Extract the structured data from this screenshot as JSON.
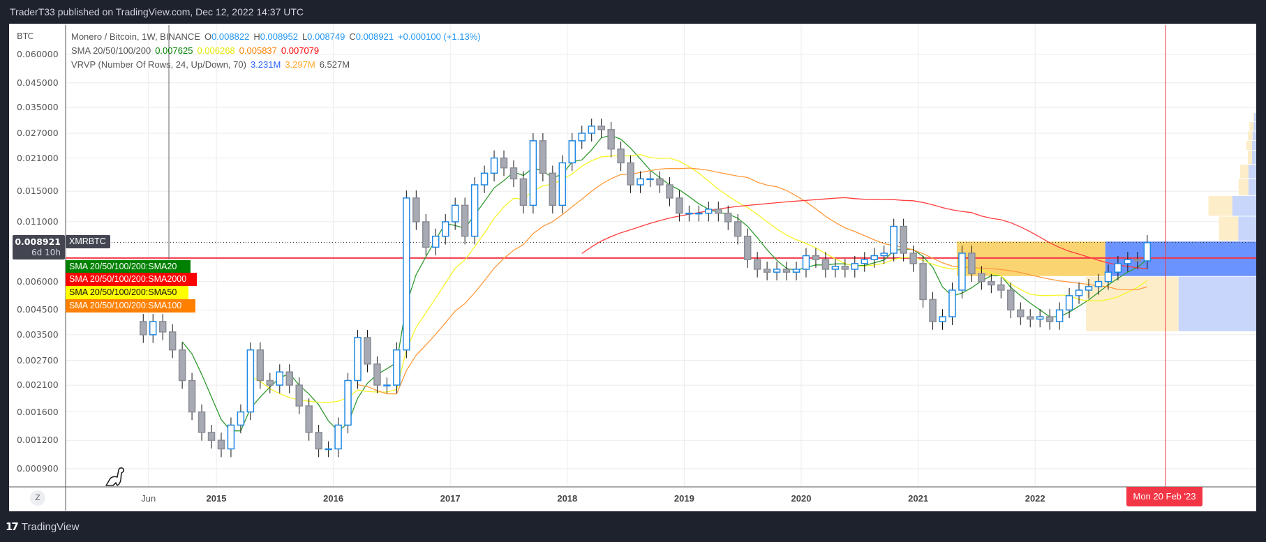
{
  "header": {
    "published": "TraderT33 published on TradingView.com, Dec 12, 2022 14:37 UTC"
  },
  "footer": {
    "brand": "TradingView",
    "brand_mark": "17"
  },
  "legend": {
    "symbol": "Monero / Bitcoin, 1W, BINANCE",
    "o_label": "O",
    "o": "0.008822",
    "h_label": "H",
    "h": "0.008952",
    "l_label": "L",
    "l": "0.008749",
    "c_label": "C",
    "c": "0.008921",
    "change": "+0.000100 (+1.13%)",
    "sma_title": "SMA 20/50/100/200",
    "sma_values": [
      "0.007625",
      "0.006268",
      "0.005837",
      "0.007079"
    ],
    "vrvp_title": "VRVP (Number Of Rows, 24, Up/Down, 70)",
    "vrvp_values": [
      "3.231M",
      "3.297M",
      "6.527M"
    ]
  },
  "price_axis": {
    "currency": "BTC",
    "ticks": [
      "0.060000",
      "0.045000",
      "0.035000",
      "0.027000",
      "0.021000",
      "0.015000",
      "0.011000",
      "0.006000",
      "0.004500",
      "0.003500",
      "0.002700",
      "0.002100",
      "0.001600",
      "0.001200",
      "0.000900"
    ],
    "last_price": "0.008921",
    "countdown": "6d 10h"
  },
  "time_axis": {
    "ticks": [
      "Jun",
      "2015",
      "2016",
      "2017",
      "2018",
      "2019",
      "2020",
      "2021",
      "2022"
    ],
    "cursor_label": "Mon 20 Feb '23",
    "z_button": "Z"
  },
  "labels": {
    "symbol_tag": "XMRBTC",
    "sma_tags": [
      "SMA 20/50/100/200:SMA20",
      "SMA 20/50/100/200:SMA2000",
      "SMA 20/50/100/200:SMA50",
      "SMA 20/50/100/200:SMA100"
    ]
  },
  "colors": {
    "up": "#1e88e5",
    "down": "#8a8d96",
    "sma20": "#2e9a2e",
    "sma50": "#f5f528",
    "sma100": "#ff9a3c",
    "sma200": "#ff3b3b",
    "vrvp_up": "#c8d6fb",
    "vrvp_down": "#fdeec9",
    "vrvp_up_va": "#6b93ff",
    "vrvp_down_va": "#fbd26a",
    "hline": "#f23645",
    "cursor": "#f23645",
    "tag_green": "#008000",
    "tag_red": "#ff0000",
    "tag_yellow": "#ffff00",
    "tag_orange": "#ff8000"
  },
  "chart_data": {
    "type": "candlestick",
    "scale": "log",
    "interval": "1W (approximated monthly)",
    "start": "2014-05",
    "first_open": 0.004,
    "closes": [
      0.0035,
      0.004,
      0.0036,
      0.003,
      0.0022,
      0.0016,
      0.0013,
      0.0012,
      0.0011,
      0.0014,
      0.0016,
      0.003,
      0.0022,
      0.0021,
      0.0024,
      0.0021,
      0.0017,
      0.0013,
      0.0011,
      0.0011,
      0.0014,
      0.0022,
      0.0034,
      0.0026,
      0.0021,
      0.0021,
      0.003,
      0.014,
      0.011,
      0.0085,
      0.0095,
      0.011,
      0.013,
      0.0095,
      0.016,
      0.018,
      0.021,
      0.019,
      0.017,
      0.013,
      0.025,
      0.018,
      0.013,
      0.02,
      0.025,
      0.027,
      0.029,
      0.028,
      0.023,
      0.02,
      0.016,
      0.017,
      0.017,
      0.016,
      0.014,
      0.012,
      0.012,
      0.012,
      0.0125,
      0.012,
      0.011,
      0.0095,
      0.0075,
      0.0068,
      0.0066,
      0.0068,
      0.0066,
      0.0068,
      0.0078,
      0.0075,
      0.0068,
      0.007,
      0.0068,
      0.0072,
      0.0075,
      0.0078,
      0.008,
      0.0105,
      0.008,
      0.0072,
      0.005,
      0.004,
      0.0042,
      0.0055,
      0.008,
      0.0065,
      0.006,
      0.0058,
      0.0055,
      0.0045,
      0.0042,
      0.0041,
      0.0042,
      0.004,
      0.0045,
      0.0052,
      0.0055,
      0.0057,
      0.006,
      0.0066,
      0.0072,
      0.0075,
      0.0074,
      0.0089
    ],
    "sma_periods_weeks": [
      20,
      50,
      100,
      200
    ],
    "horizontal_line": 0.00762,
    "last_price": 0.008921,
    "cursor_date": "2023-02-20",
    "vrvp_rows": [
      {
        "low": 0.0036,
        "high": 0.0063,
        "up": 26,
        "down": 31,
        "value_area": false
      },
      {
        "low": 0.0063,
        "high": 0.009,
        "up": 49,
        "down": 51,
        "value_area": true
      },
      {
        "low": 0.009,
        "high": 0.0116,
        "up": 6,
        "down": 6.5,
        "value_area": false
      },
      {
        "low": 0.0116,
        "high": 0.0143,
        "up": 8,
        "down": 8,
        "value_area": false
      },
      {
        "low": 0.0143,
        "high": 0.017,
        "up": 2.6,
        "down": 3.3,
        "value_area": false
      },
      {
        "low": 0.017,
        "high": 0.0196,
        "up": 2.6,
        "down": 2.8,
        "value_area": false
      },
      {
        "low": 0.0196,
        "high": 0.0226,
        "up": 1.4,
        "down": 1.4,
        "value_area": false
      },
      {
        "low": 0.0226,
        "high": 0.025,
        "up": 1.4,
        "down": 1.9,
        "value_area": false
      },
      {
        "low": 0.025,
        "high": 0.0275,
        "up": 1.2,
        "down": 1.6,
        "value_area": false
      },
      {
        "low": 0.0275,
        "high": 0.0302,
        "up": 0.9,
        "down": 1.4,
        "value_area": false
      },
      {
        "low": 0.0302,
        "high": 0.0331,
        "up": 0.7,
        "down": 0.3,
        "value_area": false
      }
    ]
  }
}
